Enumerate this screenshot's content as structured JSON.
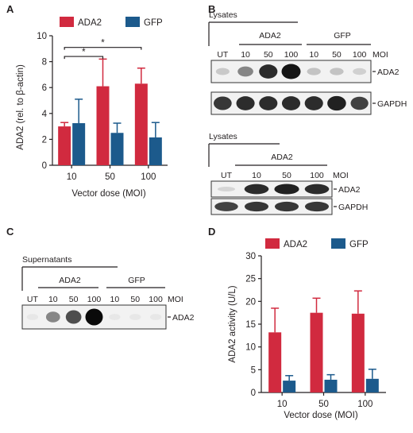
{
  "colors": {
    "ada2": "#d12a3f",
    "gfp": "#1c5a8c",
    "text": "#231f20"
  },
  "panel_labels": {
    "a": "A",
    "b": "B",
    "c": "C",
    "d": "D"
  },
  "chart_data": [
    {
      "type": "bar",
      "panel": "A",
      "categories": [
        "10",
        "50",
        "100"
      ],
      "series": [
        {
          "name": "ADA2",
          "values": [
            3.0,
            6.1,
            6.3
          ],
          "errors": [
            0.3,
            2.1,
            1.2
          ]
        },
        {
          "name": "GFP",
          "values": [
            3.25,
            2.5,
            2.15
          ],
          "errors": [
            1.85,
            0.75,
            1.15
          ]
        }
      ],
      "xlabel": "Vector dose (MOI)",
      "ylabel": "ADA2 (rel. to β-actin)",
      "ylim": [
        0,
        10
      ],
      "yticks": [
        "0",
        "2",
        "4",
        "6",
        "8",
        "10"
      ],
      "significance": [
        "*",
        "*"
      ],
      "legend_position": "top"
    },
    {
      "type": "bar",
      "panel": "D",
      "categories": [
        "10",
        "50",
        "100"
      ],
      "series": [
        {
          "name": "ADA2",
          "values": [
            13.2,
            17.5,
            17.3
          ],
          "errors": [
            5.3,
            3.2,
            5.0
          ]
        },
        {
          "name": "GFP",
          "values": [
            2.6,
            2.8,
            3.0
          ],
          "errors": [
            1.1,
            1.1,
            2.1
          ]
        }
      ],
      "xlabel": "Vector dose (MOI)",
      "ylabel": "ADA2 activity (U/L)",
      "ylim": [
        0,
        30
      ],
      "yticks": [
        "0",
        "5",
        "10",
        "15",
        "20",
        "25",
        "30"
      ],
      "legend_position": "top"
    }
  ],
  "blot_b1": {
    "header": "Lysates",
    "group1": "ADA2",
    "group2": "GFP",
    "lanes": [
      "UT",
      "10",
      "50",
      "100",
      "10",
      "50",
      "100"
    ],
    "moi": "MOI",
    "rows": [
      {
        "label": "ADA2",
        "intensities": [
          0.15,
          0.45,
          0.85,
          0.95,
          0.18,
          0.18,
          0.12
        ]
      },
      {
        "label": "GAPDH",
        "intensities": [
          0.8,
          0.85,
          0.85,
          0.85,
          0.85,
          0.9,
          0.75
        ]
      }
    ]
  },
  "blot_b2": {
    "header": "Lysates",
    "group1": "ADA2",
    "lanes": [
      "UT",
      "10",
      "50",
      "100"
    ],
    "moi": "MOI",
    "rows": [
      {
        "label": "ADA2",
        "intensities": [
          0.1,
          0.85,
          0.9,
          0.85
        ]
      },
      {
        "label": "GAPDH",
        "intensities": [
          0.75,
          0.8,
          0.8,
          0.8
        ]
      }
    ]
  },
  "blot_c": {
    "header": "Supernatants",
    "group1": "ADA2",
    "group2": "GFP",
    "lanes": [
      "UT",
      "10",
      "50",
      "100",
      "10",
      "50",
      "100"
    ],
    "moi": "MOI",
    "rows": [
      {
        "label": "ADA2",
        "intensities": [
          0.02,
          0.45,
          0.7,
          1.0,
          0.02,
          0.02,
          0.02
        ]
      }
    ]
  }
}
